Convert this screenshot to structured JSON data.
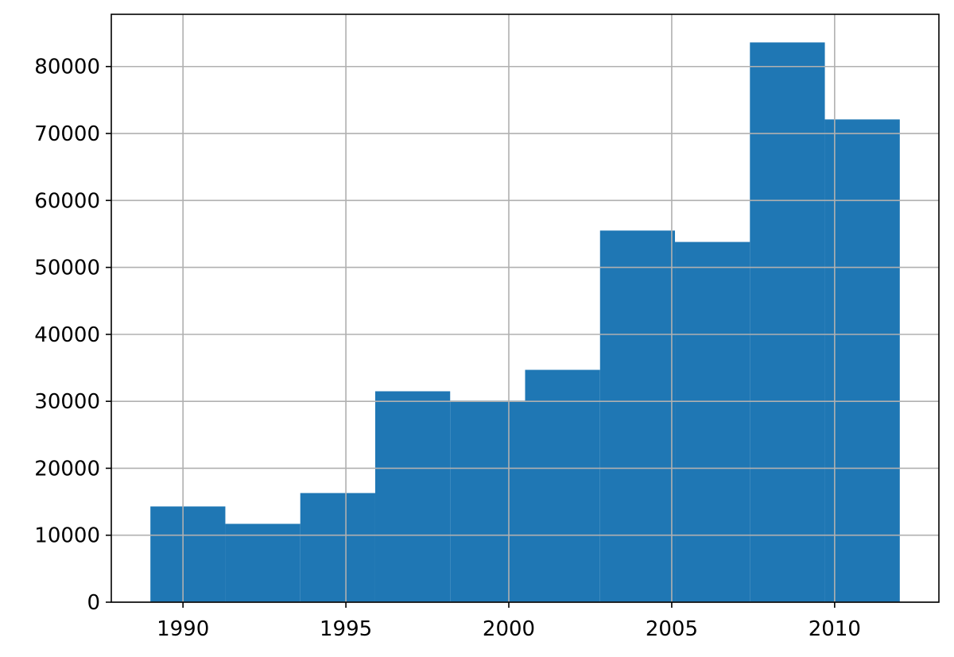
{
  "chart_data": {
    "type": "bar",
    "subtype": "histogram",
    "title": "",
    "xlabel": "",
    "ylabel": "",
    "bins": [
      {
        "x_start": 1989.0,
        "x_end": 1991.3,
        "value": 14300
      },
      {
        "x_start": 1991.3,
        "x_end": 1993.6,
        "value": 11700
      },
      {
        "x_start": 1993.6,
        "x_end": 1995.9,
        "value": 16300
      },
      {
        "x_start": 1995.9,
        "x_end": 1998.2,
        "value": 31500
      },
      {
        "x_start": 1998.2,
        "x_end": 2000.5,
        "value": 30100
      },
      {
        "x_start": 2000.5,
        "x_end": 2002.8,
        "value": 34700
      },
      {
        "x_start": 2002.8,
        "x_end": 2005.1,
        "value": 55500
      },
      {
        "x_start": 2005.1,
        "x_end": 2007.4,
        "value": 53800
      },
      {
        "x_start": 2007.4,
        "x_end": 2009.7,
        "value": 83600
      },
      {
        "x_start": 2009.7,
        "x_end": 2012.0,
        "value": 72100
      }
    ],
    "xlim": [
      1987.8,
      2013.2
    ],
    "ylim": [
      0,
      87800
    ],
    "xticks": [
      1990,
      1995,
      2000,
      2005,
      2010
    ],
    "xtick_labels": [
      "1990",
      "1995",
      "2000",
      "2005",
      "2010"
    ],
    "yticks": [
      0,
      10000,
      20000,
      30000,
      40000,
      50000,
      60000,
      70000,
      80000
    ],
    "ytick_labels": [
      "0",
      "10000",
      "20000",
      "30000",
      "40000",
      "50000",
      "60000",
      "70000",
      "80000"
    ],
    "grid": true,
    "bar_color": "#1f77b4"
  }
}
